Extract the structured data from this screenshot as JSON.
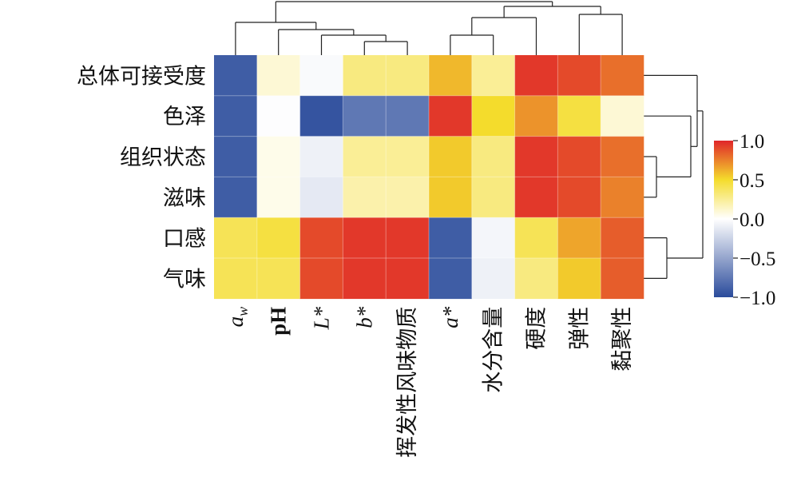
{
  "chart_data": {
    "type": "heatmap",
    "rows": [
      "总体可接受度",
      "色泽",
      "组织状态",
      "滋味",
      "口感",
      "气味"
    ],
    "columns": [
      {
        "base": "a",
        "sub": "w",
        "italic": true,
        "bold": false
      },
      {
        "base": "pH",
        "sub": "",
        "italic": false,
        "bold": true
      },
      {
        "base": "L*",
        "sub": "",
        "italic": true,
        "bold": false
      },
      {
        "base": "b*",
        "sub": "",
        "italic": true,
        "bold": false
      },
      {
        "base": "挥发性风味物质",
        "sub": "",
        "italic": false,
        "bold": false
      },
      {
        "base": "a*",
        "sub": "",
        "italic": true,
        "bold": false
      },
      {
        "base": "水分含量",
        "sub": "",
        "italic": false,
        "bold": false
      },
      {
        "base": "硬度",
        "sub": "",
        "italic": false,
        "bold": false
      },
      {
        "base": "弹性",
        "sub": "",
        "italic": false,
        "bold": false
      },
      {
        "base": "黏聚性",
        "sub": "",
        "italic": false,
        "bold": false
      }
    ],
    "values": [
      [
        -0.9,
        0.1,
        -0.03,
        0.3,
        0.3,
        0.6,
        0.25,
        0.95,
        0.9,
        0.8
      ],
      [
        -0.9,
        -0.01,
        -0.95,
        -0.75,
        -0.75,
        0.95,
        0.5,
        0.7,
        0.45,
        0.1
      ],
      [
        -0.9,
        0.05,
        -0.08,
        0.25,
        0.25,
        0.55,
        0.3,
        0.95,
        0.9,
        0.8
      ],
      [
        -0.9,
        0.05,
        -0.12,
        0.2,
        0.2,
        0.55,
        0.3,
        0.95,
        0.9,
        0.75
      ],
      [
        0.4,
        0.45,
        0.9,
        0.95,
        0.95,
        -0.9,
        -0.05,
        0.4,
        0.65,
        0.85
      ],
      [
        0.4,
        0.4,
        0.9,
        0.95,
        0.95,
        -0.9,
        -0.08,
        0.3,
        0.55,
        0.85
      ]
    ],
    "color_range": [
      -1.0,
      1.0
    ],
    "colorbar_ticks": [
      {
        "value": 1.0,
        "label": "1.0"
      },
      {
        "value": 0.5,
        "label": "0.5"
      },
      {
        "value": 0.0,
        "label": "0.0"
      },
      {
        "value": -0.5,
        "label": "−0.5"
      },
      {
        "value": -1.0,
        "label": "−1.0"
      }
    ],
    "colormap": [
      "#2a4b9b",
      "#ffffff",
      "#f4dc2c",
      "#e0262a"
    ],
    "dendrogram_columns": true,
    "dendrogram_rows": true
  }
}
